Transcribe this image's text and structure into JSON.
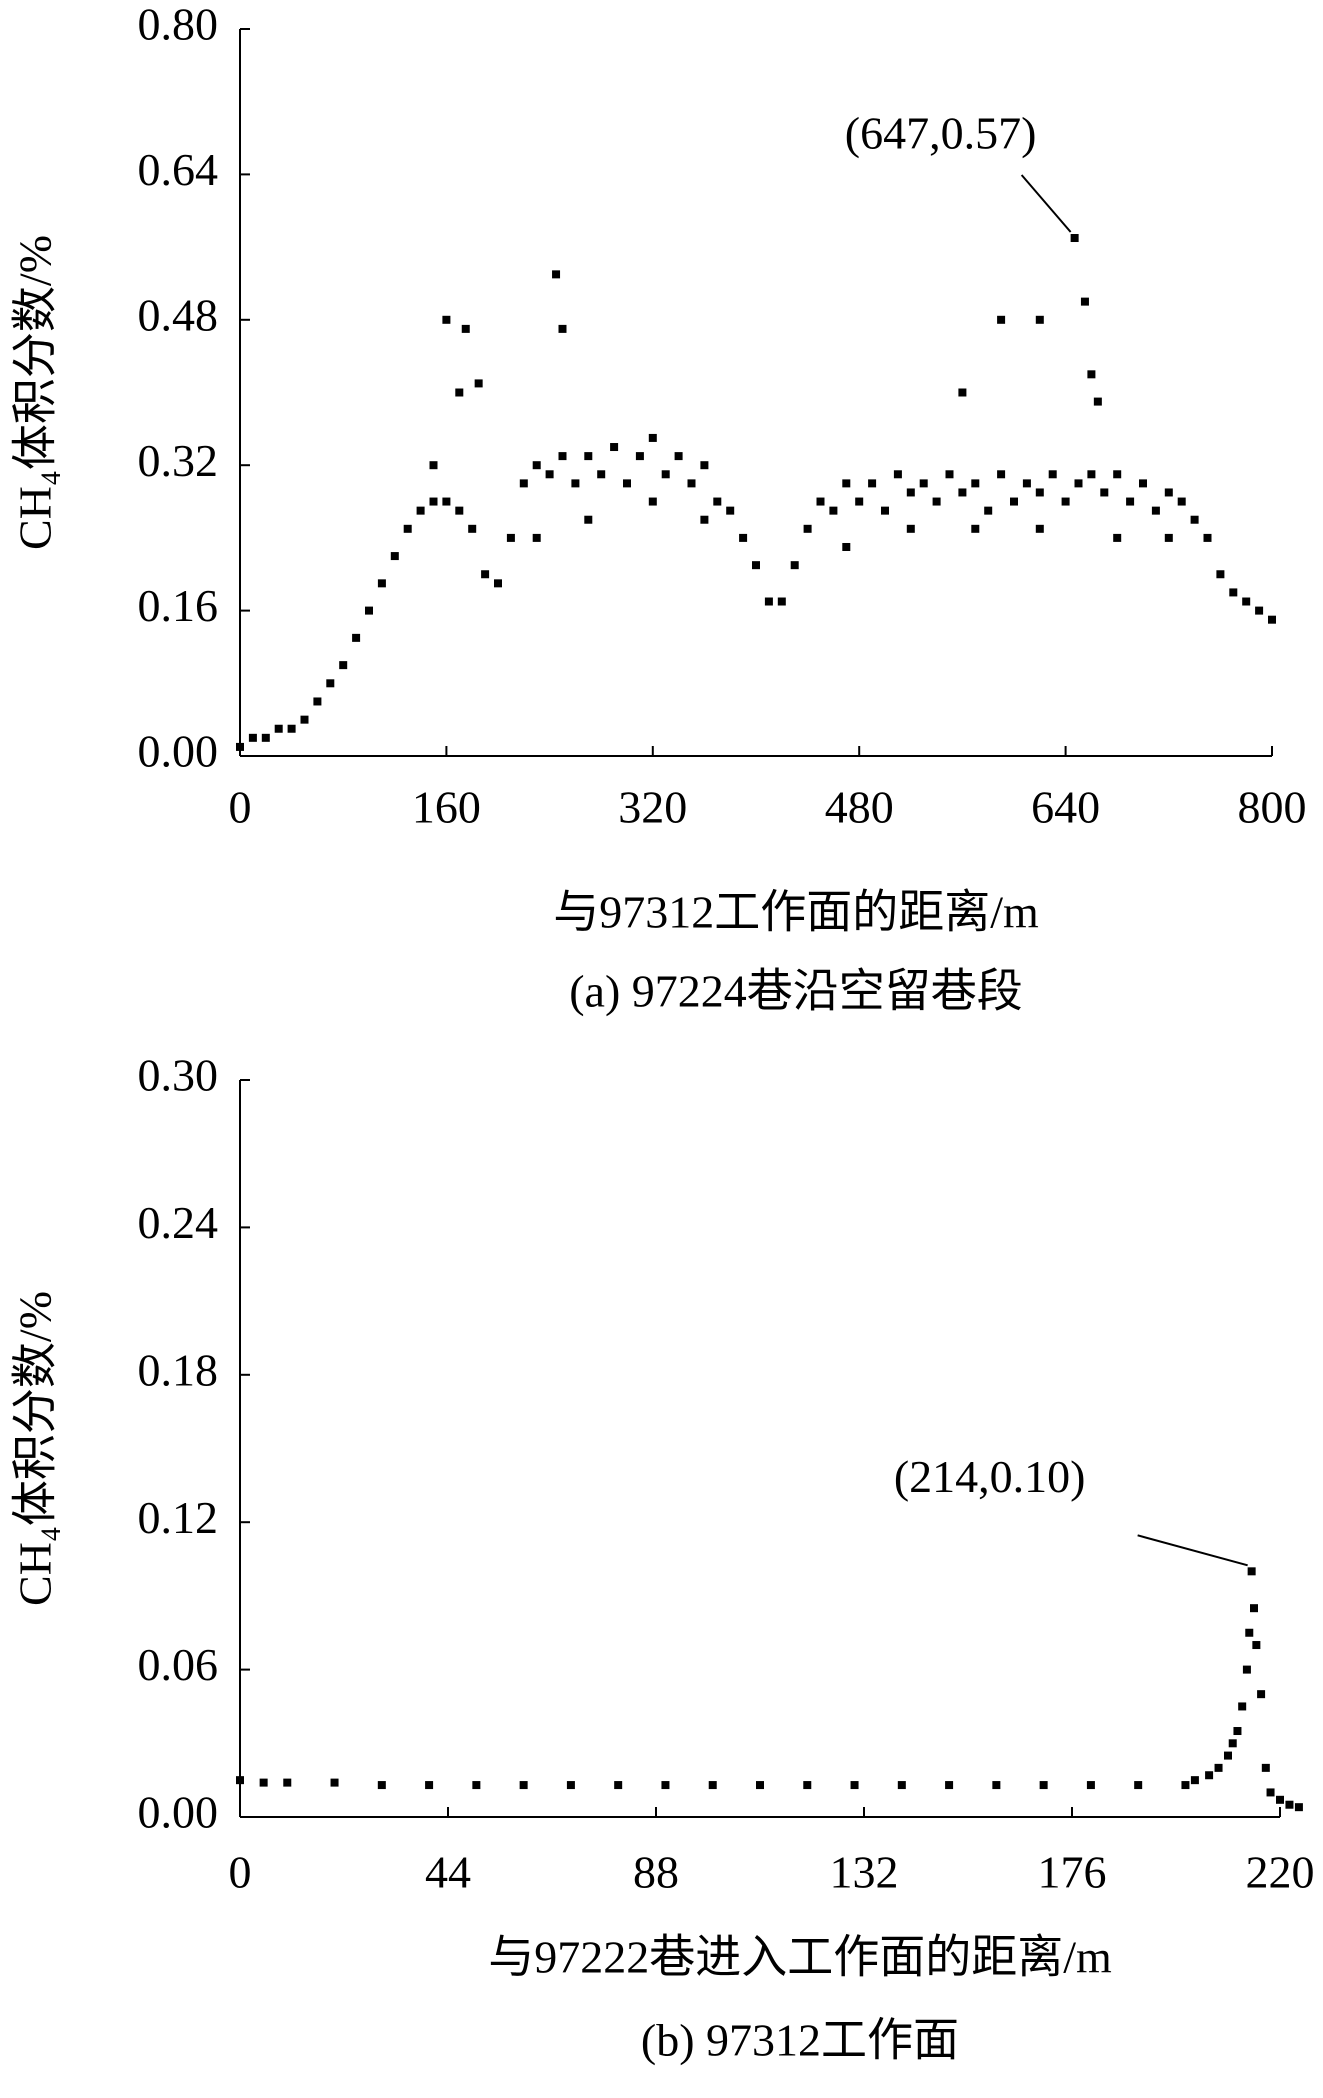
{
  "chart_data": [
    {
      "type": "scatter",
      "subtitle": "(a) 97224巷沿空留巷段",
      "xlabel": "与97312工作面的距离/m",
      "ylabel": "CH₄体积分数/%",
      "color": "#000000",
      "x": [
        0,
        10,
        20,
        30,
        40,
        50,
        60,
        70,
        80,
        90,
        100,
        110,
        120,
        130,
        140,
        150,
        160,
        170,
        180,
        190,
        200,
        210,
        220,
        230,
        240,
        250,
        260,
        270,
        280,
        290,
        300,
        310,
        320,
        330,
        340,
        350,
        360,
        370,
        380,
        390,
        400,
        410,
        420,
        430,
        440,
        450,
        460,
        470,
        480,
        490,
        500,
        510,
        520,
        530,
        540,
        550,
        560,
        570,
        580,
        590,
        600,
        610,
        620,
        630,
        640,
        650,
        660,
        670,
        680,
        690,
        700,
        710,
        720,
        730,
        740,
        750,
        760,
        770,
        780,
        790,
        800,
        150,
        160,
        170,
        175,
        185,
        245,
        250,
        560,
        590,
        620,
        647,
        655,
        660,
        665,
        230,
        270,
        320,
        360,
        470,
        520,
        570,
        620,
        680,
        720
      ],
      "y": [
        0.01,
        0.02,
        0.02,
        0.03,
        0.03,
        0.04,
        0.06,
        0.08,
        0.1,
        0.13,
        0.16,
        0.19,
        0.22,
        0.25,
        0.27,
        0.28,
        0.28,
        0.27,
        0.25,
        0.2,
        0.19,
        0.24,
        0.3,
        0.32,
        0.31,
        0.33,
        0.3,
        0.33,
        0.31,
        0.34,
        0.3,
        0.33,
        0.35,
        0.31,
        0.33,
        0.3,
        0.32,
        0.28,
        0.27,
        0.24,
        0.21,
        0.17,
        0.17,
        0.21,
        0.25,
        0.28,
        0.27,
        0.3,
        0.28,
        0.3,
        0.27,
        0.31,
        0.29,
        0.3,
        0.28,
        0.31,
        0.29,
        0.3,
        0.27,
        0.31,
        0.28,
        0.3,
        0.29,
        0.31,
        0.28,
        0.3,
        0.31,
        0.29,
        0.31,
        0.28,
        0.3,
        0.27,
        0.29,
        0.28,
        0.26,
        0.24,
        0.2,
        0.18,
        0.17,
        0.16,
        0.15,
        0.32,
        0.48,
        0.4,
        0.47,
        0.41,
        0.53,
        0.47,
        0.4,
        0.48,
        0.48,
        0.57,
        0.5,
        0.42,
        0.39,
        0.24,
        0.26,
        0.28,
        0.26,
        0.23,
        0.25,
        0.25,
        0.25,
        0.24,
        0.24
      ],
      "xlim": [
        0,
        800
      ],
      "ylim": [
        0,
        0.8
      ],
      "xticks": [
        0,
        160,
        320,
        480,
        640,
        800
      ],
      "yticks": [
        {
          "value": 0,
          "label": "0.00"
        },
        {
          "value": 0.16,
          "label": "0.16"
        },
        {
          "value": 0.32,
          "label": "0.32"
        },
        {
          "value": 0.48,
          "label": "0.48"
        },
        {
          "value": 0.64,
          "label": "0.64"
        },
        {
          "value": 0.8,
          "label": "0.80"
        }
      ],
      "annotations": [
        {
          "text": "(647,0.57)",
          "x": 647,
          "y": 0.57
        }
      ]
    },
    {
      "type": "scatter",
      "subtitle": "(b) 97312工作面",
      "xlabel": "与97222巷进入工作面的距离/m",
      "ylabel": "CH₄体积分数/%",
      "color": "#000000",
      "x": [
        0,
        5,
        10,
        20,
        30,
        40,
        50,
        60,
        70,
        80,
        90,
        100,
        110,
        120,
        130,
        140,
        150,
        160,
        170,
        180,
        190,
        200,
        202,
        205,
        207,
        209,
        210,
        211,
        212,
        213,
        213.5,
        214,
        214.5,
        215,
        216,
        217,
        218,
        220,
        222,
        224
      ],
      "y": [
        0.015,
        0.014,
        0.014,
        0.014,
        0.013,
        0.013,
        0.013,
        0.013,
        0.013,
        0.013,
        0.013,
        0.013,
        0.013,
        0.013,
        0.013,
        0.013,
        0.013,
        0.013,
        0.013,
        0.013,
        0.013,
        0.013,
        0.015,
        0.017,
        0.02,
        0.025,
        0.03,
        0.035,
        0.045,
        0.06,
        0.075,
        0.1,
        0.085,
        0.07,
        0.05,
        0.02,
        0.01,
        0.007,
        0.005,
        0.004
      ],
      "xlim": [
        0,
        220
      ],
      "ylim": [
        0,
        0.3
      ],
      "xticks": [
        0,
        44,
        88,
        132,
        176,
        220
      ],
      "yticks": [
        {
          "value": 0,
          "label": "0.00"
        },
        {
          "value": 0.06,
          "label": "0.06"
        },
        {
          "value": 0.12,
          "label": "0.12"
        },
        {
          "value": 0.18,
          "label": "0.18"
        },
        {
          "value": 0.24,
          "label": "0.24"
        },
        {
          "value": 0.3,
          "label": "0.30"
        }
      ],
      "annotations": [
        {
          "text": "(214,0.10)",
          "x": 214,
          "y": 0.1
        }
      ]
    }
  ]
}
